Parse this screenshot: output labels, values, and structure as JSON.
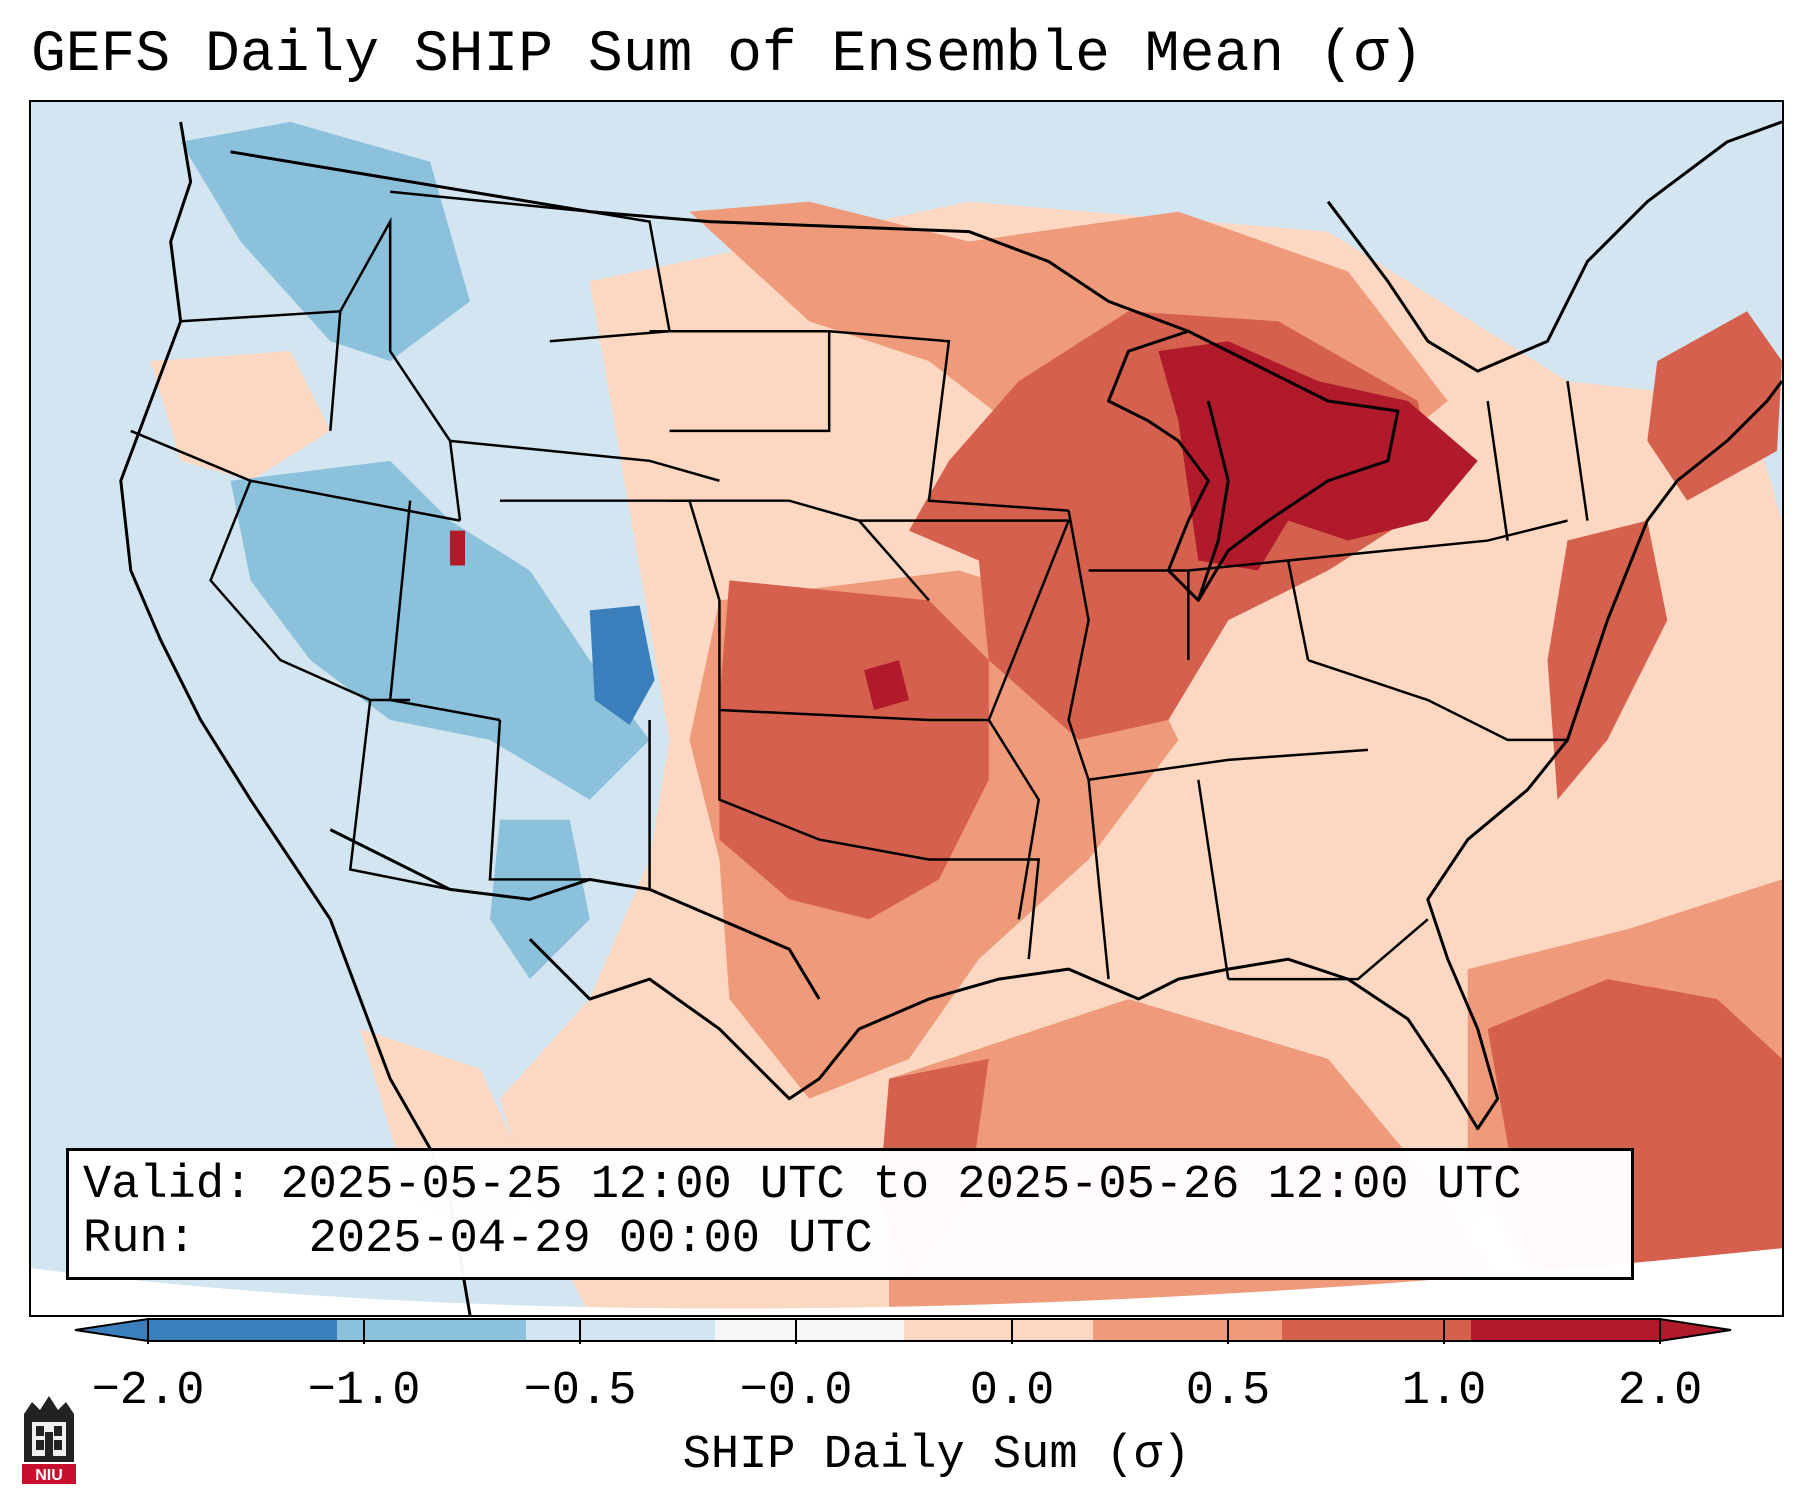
{
  "title": "GEFS Daily SHIP Sum of Ensemble Mean (σ)",
  "info": {
    "valid_label": "Valid:",
    "valid_value": "2025-05-25 12:00 UTC to 2025-05-26 12:00 UTC",
    "run_label": "Run:",
    "run_value": "2025-04-29 00:00 UTC"
  },
  "colorbar": {
    "label": "SHIP Daily Sum (σ)",
    "ticks": [
      "−2.0",
      "−1.0",
      "−0.5",
      "−0.0",
      "0.0",
      "0.5",
      "1.0",
      "2.0"
    ],
    "bin_colors": [
      "#3a7fbb",
      "#8cc1dc",
      "#d2e5f0",
      "#f6f6f6",
      "#fcd7c1",
      "#ef9b7b",
      "#d5604d",
      "#b01a2b"
    ]
  },
  "logo": {
    "text": "NIU",
    "color": "#c8102e"
  },
  "map": {
    "region": "Contiguous United States",
    "boundaries": [
      "coastlines",
      "state-borders",
      "country-borders"
    ],
    "field": "SHIP daily sum anomaly (σ)",
    "highlight_regions": [
      {
        "name": "Great Lakes / Michigan",
        "level": 2.0
      },
      {
        "name": "Central Plains (Kansas, Oklahoma)",
        "level": 1.5
      },
      {
        "name": "Iowa / Missouri / Illinois",
        "level": 1.0
      },
      {
        "name": "Northeast (New England)",
        "level": 1.0
      },
      {
        "name": "Gulf of Mexico / Florida / Atlantic",
        "level": 1.0
      },
      {
        "name": "Colorado / Utah",
        "level": -1.0
      },
      {
        "name": "Idaho / Montana / Wyoming",
        "level": -0.5
      }
    ]
  }
}
